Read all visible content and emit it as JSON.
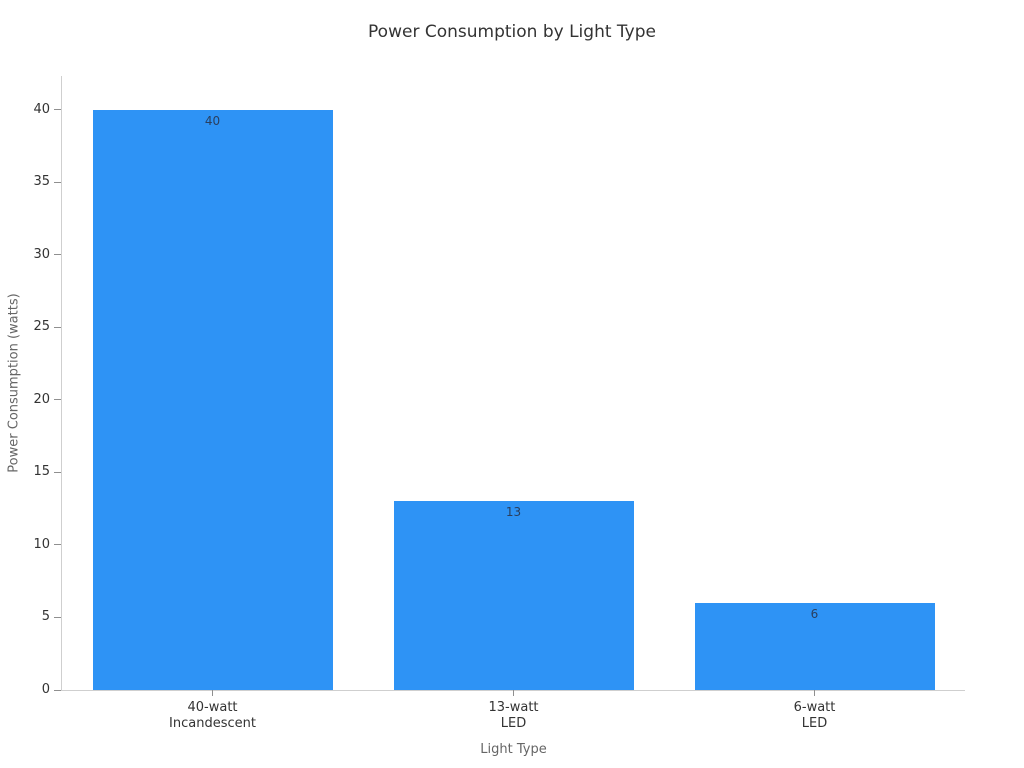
{
  "chart_data": {
    "type": "bar",
    "title": "Power Consumption by Light Type",
    "xlabel": "Light Type",
    "ylabel": "Power Consumption (watts)",
    "categories": [
      "40-watt Incandescent",
      "13-watt LED",
      "6-watt LED"
    ],
    "category_lines": [
      [
        "40-watt",
        "Incandescent"
      ],
      [
        "13-watt",
        "LED"
      ],
      [
        "6-watt",
        "LED"
      ]
    ],
    "values": [
      40,
      13,
      6
    ],
    "bar_labels": [
      "40",
      "13",
      "6"
    ],
    "yticks": [
      0,
      5,
      10,
      15,
      20,
      25,
      30,
      35,
      40
    ],
    "ylim": [
      0,
      42.34
    ],
    "grid": false,
    "legend": "none",
    "colors": {
      "bar": "#2e93f5",
      "bar_label": "#2a3f5f",
      "axis_line": "#cfcfcf",
      "tick_mark": "#8f8f8f",
      "tick_label": "#333333",
      "axis_title": "#666666",
      "title": "#333333"
    }
  }
}
